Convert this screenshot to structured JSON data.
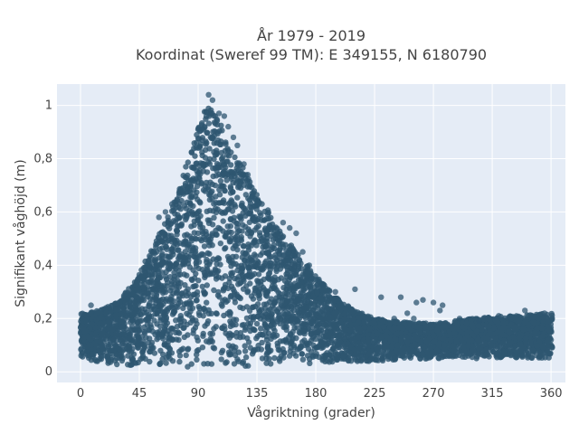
{
  "chart_data": {
    "type": "scatter",
    "title": "År 1979 - 2019",
    "subtitle": "Koordinat (Sweref 99 TM): E 349155, N 6180790",
    "xlabel": "Vågriktning (grader)",
    "ylabel": "Signifikant våghöjd (m)",
    "xlim": [
      -18,
      371
    ],
    "ylim": [
      -0.04,
      1.08
    ],
    "x_ticks": [
      0,
      45,
      90,
      135,
      180,
      225,
      270,
      315,
      360
    ],
    "x_tick_labels": [
      "0",
      "45",
      "90",
      "135",
      "180",
      "225",
      "270",
      "315",
      "360"
    ],
    "y_ticks": [
      0,
      0.2,
      0.4,
      0.6,
      0.8,
      1
    ],
    "y_tick_labels": [
      "0",
      "0,2",
      "0,4",
      "0,6",
      "0,8",
      "1"
    ],
    "grid": true,
    "plot_background": "#e5ecf6",
    "marker_color": "#2e5670",
    "envelope_upper": [
      [
        0,
        0.22
      ],
      [
        15,
        0.23
      ],
      [
        30,
        0.27
      ],
      [
        45,
        0.37
      ],
      [
        55,
        0.47
      ],
      [
        65,
        0.56
      ],
      [
        75,
        0.68
      ],
      [
        85,
        0.85
      ],
      [
        95,
        0.98
      ],
      [
        100,
        1.0
      ],
      [
        110,
        0.9
      ],
      [
        120,
        0.8
      ],
      [
        135,
        0.68
      ],
      [
        150,
        0.55
      ],
      [
        165,
        0.45
      ],
      [
        180,
        0.36
      ],
      [
        195,
        0.28
      ],
      [
        210,
        0.23
      ],
      [
        225,
        0.2
      ],
      [
        240,
        0.19
      ],
      [
        270,
        0.18
      ],
      [
        300,
        0.2
      ],
      [
        330,
        0.21
      ],
      [
        360,
        0.22
      ]
    ],
    "envelope_lower": [
      [
        0,
        0.05
      ],
      [
        20,
        0.03
      ],
      [
        45,
        0.02
      ],
      [
        90,
        0.01
      ],
      [
        135,
        0.02
      ],
      [
        180,
        0.03
      ],
      [
        225,
        0.04
      ],
      [
        270,
        0.05
      ],
      [
        315,
        0.05
      ],
      [
        360,
        0.05
      ]
    ],
    "outliers": [
      [
        90,
        0.91
      ],
      [
        93,
        0.87
      ],
      [
        95,
        0.92
      ],
      [
        98,
        1.04
      ],
      [
        101,
        1.02
      ],
      [
        103,
        0.96
      ],
      [
        106,
        0.97
      ],
      [
        110,
        0.96
      ],
      [
        113,
        0.92
      ],
      [
        117,
        0.88
      ],
      [
        120,
        0.85
      ],
      [
        125,
        0.78
      ],
      [
        128,
        0.74
      ],
      [
        60,
        0.58
      ],
      [
        65,
        0.6
      ],
      [
        70,
        0.63
      ],
      [
        155,
        0.56
      ],
      [
        160,
        0.54
      ],
      [
        165,
        0.52
      ],
      [
        170,
        0.45
      ],
      [
        175,
        0.4
      ],
      [
        185,
        0.33
      ],
      [
        195,
        0.3
      ],
      [
        210,
        0.31
      ],
      [
        230,
        0.28
      ],
      [
        245,
        0.28
      ],
      [
        257,
        0.26
      ],
      [
        262,
        0.27
      ],
      [
        270,
        0.26
      ],
      [
        277,
        0.25
      ],
      [
        290,
        0.2
      ],
      [
        305,
        0.19
      ],
      [
        320,
        0.21
      ],
      [
        340,
        0.23
      ],
      [
        355,
        0.22
      ],
      [
        8,
        0.25
      ],
      [
        240,
        0.2
      ],
      [
        255,
        0.2
      ],
      [
        250,
        0.22
      ],
      [
        275,
        0.23
      ]
    ]
  }
}
